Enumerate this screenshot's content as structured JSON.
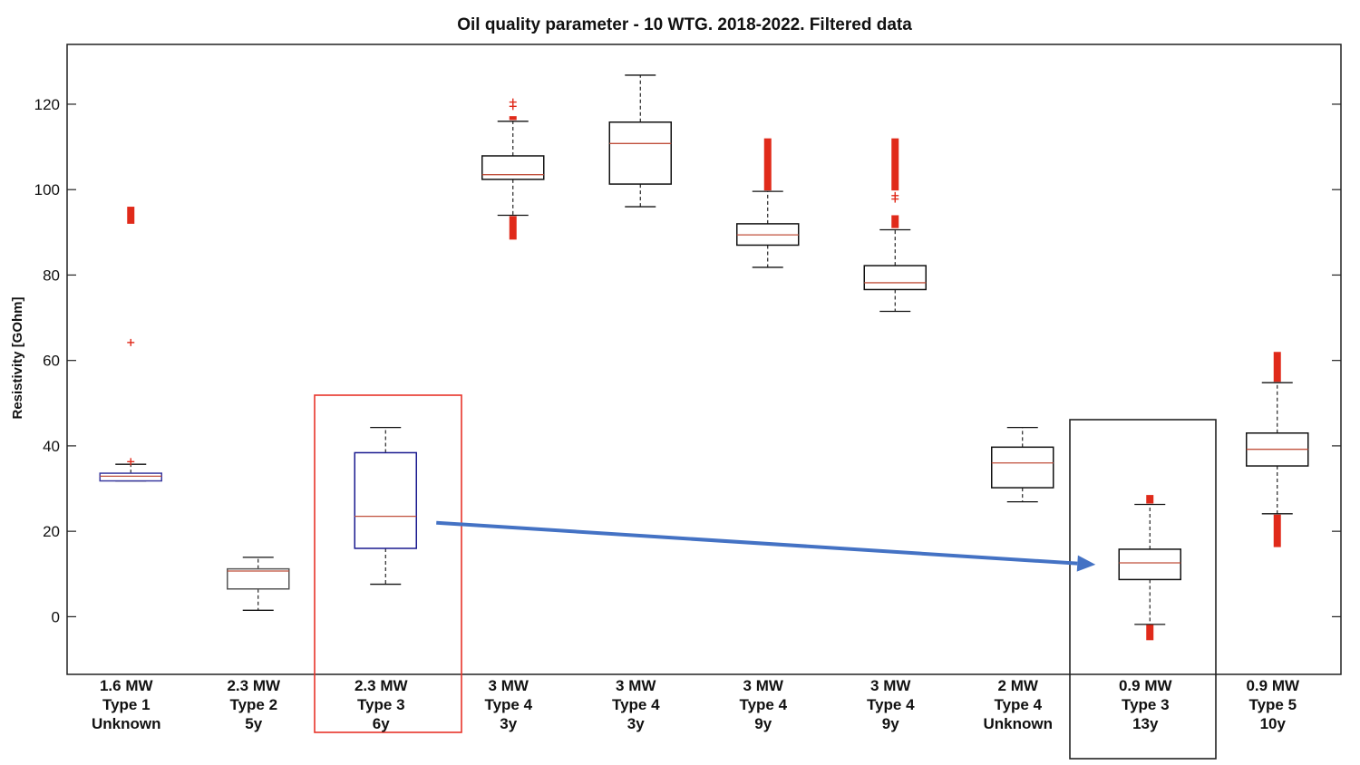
{
  "chart_data": {
    "type": "box",
    "title": "Oil quality parameter - 10 WTG. 2018-2022. Filtered data",
    "xlabel": "",
    "ylabel": "Resistivity [GOhm]",
    "ylim": [
      -13.5,
      134
    ],
    "yticks": [
      0,
      20,
      40,
      60,
      80,
      100,
      120
    ],
    "grid": false,
    "categories": [
      {
        "lines": [
          "1.6 MW",
          "Type 1",
          "Unknown"
        ]
      },
      {
        "lines": [
          "2.3 MW",
          "Type 2",
          "5y"
        ]
      },
      {
        "lines": [
          "2.3 MW",
          "Type 3",
          "6y"
        ]
      },
      {
        "lines": [
          "3 MW",
          "Type 4",
          "3y"
        ]
      },
      {
        "lines": [
          "3 MW",
          "Type 4",
          "3y"
        ]
      },
      {
        "lines": [
          "3 MW",
          "Type 4",
          "9y"
        ]
      },
      {
        "lines": [
          "3 MW",
          "Type 4",
          "9y"
        ]
      },
      {
        "lines": [
          "2 MW",
          "Type 4",
          "Unknown"
        ]
      },
      {
        "lines": [
          "0.9 MW",
          "Type 3",
          "13y"
        ]
      },
      {
        "lines": [
          "0.9 MW",
          "Type 5",
          "10y"
        ]
      }
    ],
    "boxes": [
      {
        "whisker_low": 31.8,
        "q1": 31.8,
        "median": 32.9,
        "q3": 33.6,
        "whisker_high": 35.7,
        "box_color": "#3a3aa0",
        "outliers": [
          36.3,
          64.2
        ],
        "outlier_ranges": [
          [
            92,
            96
          ]
        ]
      },
      {
        "whisker_low": 1.5,
        "q1": 6.5,
        "median": 10.7,
        "q3": 11.2,
        "whisker_high": 13.9,
        "box_color": "#555555",
        "outliers": [],
        "outlier_ranges": []
      },
      {
        "whisker_low": 7.6,
        "q1": 16.0,
        "median": 23.5,
        "q3": 38.4,
        "whisker_high": 44.3,
        "box_color": "#1a1a8f",
        "outliers": [],
        "outlier_ranges": []
      },
      {
        "whisker_low": 94.0,
        "q1": 102.4,
        "median": 103.5,
        "q3": 107.9,
        "whisker_high": 116.0,
        "box_color": "#111111",
        "outliers": [
          119.5,
          120.5
        ],
        "outlier_ranges": [
          [
            88.3,
            93.8
          ],
          [
            116.3,
            117.2
          ]
        ]
      },
      {
        "whisker_low": 96.0,
        "q1": 101.3,
        "median": 110.8,
        "q3": 115.8,
        "whisker_high": 126.8,
        "box_color": "#111111",
        "outliers": [],
        "outlier_ranges": []
      },
      {
        "whisker_low": 81.8,
        "q1": 87.0,
        "median": 89.4,
        "q3": 92.0,
        "whisker_high": 99.6,
        "box_color": "#111111",
        "outliers": [],
        "outlier_ranges": [
          [
            99.8,
            112
          ]
        ]
      },
      {
        "whisker_low": 71.5,
        "q1": 76.6,
        "median": 78.2,
        "q3": 82.2,
        "whisker_high": 90.6,
        "box_color": "#111111",
        "outliers": [
          97.8,
          98.6
        ],
        "outlier_ranges": [
          [
            91,
            94
          ],
          [
            99.8,
            112
          ]
        ]
      },
      {
        "whisker_low": 26.9,
        "q1": 30.2,
        "median": 36.0,
        "q3": 39.7,
        "whisker_high": 44.3,
        "box_color": "#111111",
        "outliers": [],
        "outlier_ranges": []
      },
      {
        "whisker_low": -1.8,
        "q1": 8.7,
        "median": 12.6,
        "q3": 15.8,
        "whisker_high": 26.3,
        "box_color": "#111111",
        "outliers": [],
        "outlier_ranges": [
          [
            -5.5,
            -1.9
          ],
          [
            26.5,
            28.5
          ]
        ]
      },
      {
        "whisker_low": 24.1,
        "q1": 35.3,
        "median": 39.2,
        "q3": 43.0,
        "whisker_high": 54.8,
        "box_color": "#111111",
        "outliers": [],
        "outlier_ranges": [
          [
            16.3,
            23.9
          ],
          [
            55,
            62
          ]
        ]
      }
    ],
    "highlights": [
      {
        "category_index": 2,
        "color": "#e8342a"
      },
      {
        "category_index": 8,
        "color": "#222222"
      }
    ],
    "arrow": {
      "from_category": 2,
      "from_y": 22,
      "to_category": 8,
      "to_y": 12.2,
      "color": "#4472c4"
    },
    "colors": {
      "median": "#c0503c",
      "outlier": "#e02a1a",
      "whisker": "#111111"
    }
  }
}
